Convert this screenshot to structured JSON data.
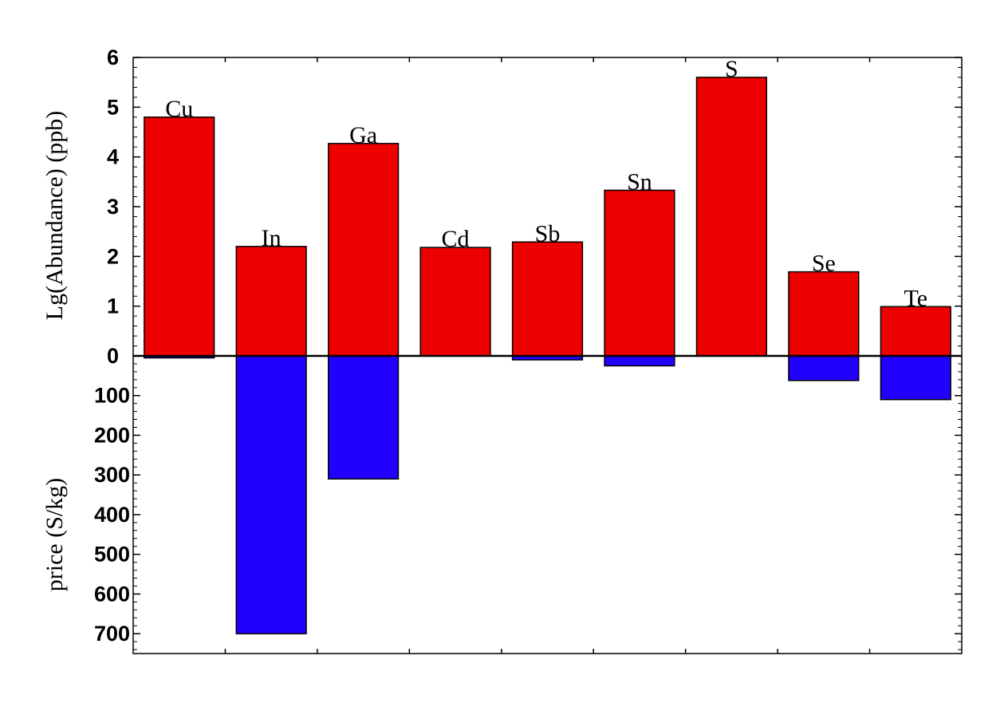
{
  "chart_data": {
    "type": "bar",
    "categories": [
      "Cu",
      "In",
      "Ga",
      "Cd",
      "Sb",
      "Sn",
      "S",
      "Se",
      "Te"
    ],
    "series": [
      {
        "values": [
          4.8,
          2.2,
          4.27,
          2.18,
          2.29,
          3.33,
          5.6,
          1.69,
          0.99
        ],
        "color": "#ee0000"
      },
      {
        "values": [
          5,
          700,
          310,
          0,
          10,
          25,
          0,
          62,
          110
        ],
        "color": "#2200ff"
      }
    ],
    "upper_axis": {
      "ylabel": "Lg(Abundance)  (ppb)",
      "ylim": [
        0,
        6
      ],
      "ticks": [
        "0",
        "1",
        "2",
        "3",
        "4",
        "5",
        "6"
      ]
    },
    "lower_axis": {
      "ylabel": "price (S/kg)",
      "ylim": [
        0,
        750
      ],
      "ticks": [
        "100",
        "200",
        "300",
        "400",
        "500",
        "600",
        "700"
      ]
    },
    "grid": false
  }
}
